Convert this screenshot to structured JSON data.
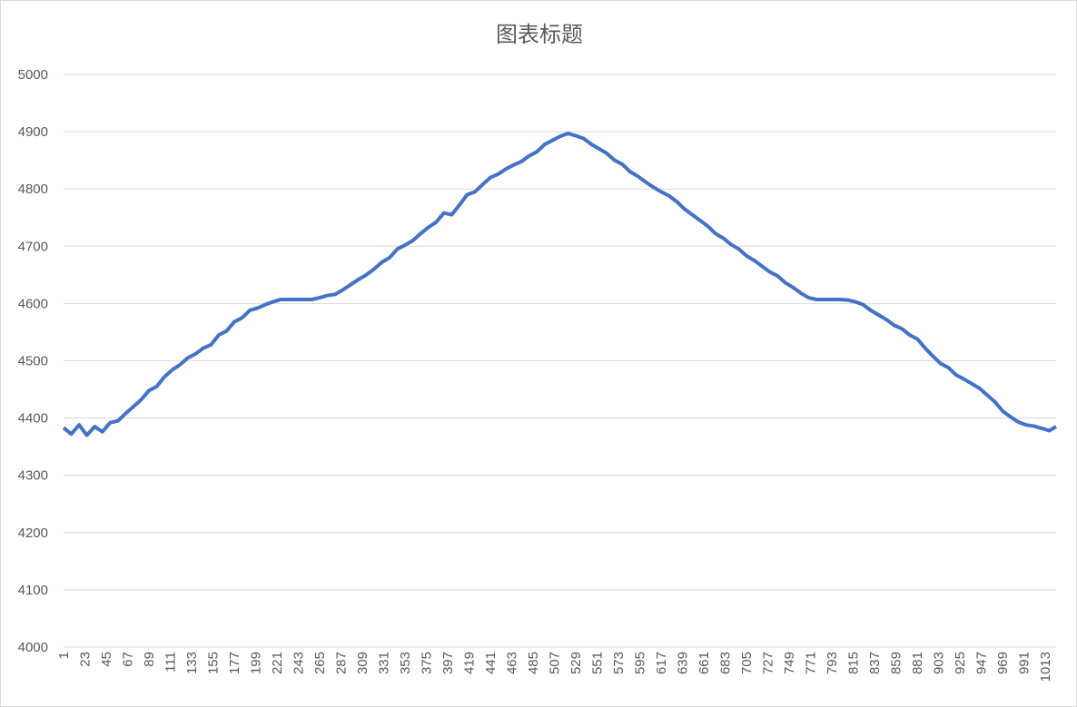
{
  "chart_data": {
    "type": "line",
    "title": "图表标题",
    "x": [
      1,
      9,
      17,
      25,
      33,
      41,
      49,
      57,
      65,
      73,
      81,
      89,
      97,
      105,
      113,
      121,
      129,
      137,
      145,
      153,
      161,
      169,
      177,
      185,
      193,
      201,
      209,
      217,
      225,
      233,
      241,
      249,
      257,
      265,
      273,
      281,
      289,
      297,
      305,
      313,
      321,
      329,
      337,
      345,
      353,
      361,
      369,
      377,
      385,
      393,
      401,
      409,
      417,
      425,
      433,
      441,
      449,
      457,
      465,
      473,
      481,
      489,
      497,
      505,
      513,
      521,
      529,
      537,
      545,
      553,
      561,
      569,
      577,
      585,
      593,
      601,
      609,
      617,
      625,
      633,
      641,
      649,
      657,
      665,
      673,
      681,
      689,
      697,
      705,
      713,
      721,
      729,
      737,
      745,
      753,
      761,
      769,
      777,
      785,
      793,
      801,
      809,
      817,
      825,
      833,
      841,
      849,
      857,
      865,
      873,
      881,
      889,
      897,
      905,
      913,
      921,
      929,
      937,
      945,
      953,
      961,
      969,
      977,
      985,
      993,
      1001,
      1009,
      1017,
      1024
    ],
    "series": [
      {
        "color": "#4472c4",
        "values": [
          4383,
          4372,
          4388,
          4370,
          4385,
          4376,
          4392,
          4395,
          4408,
          4420,
          4432,
          4448,
          4455,
          4472,
          4484,
          4493,
          4505,
          4512,
          4522,
          4528,
          4545,
          4552,
          4568,
          4575,
          4588,
          4592,
          4598,
          4603,
          4607,
          4607,
          4607,
          4607,
          4607,
          4610,
          4614,
          4616,
          4624,
          4633,
          4642,
          4650,
          4660,
          4672,
          4680,
          4695,
          4702,
          4710,
          4722,
          4733,
          4742,
          4758,
          4755,
          4772,
          4790,
          4795,
          4808,
          4820,
          4826,
          4835,
          4842,
          4848,
          4858,
          4865,
          4878,
          4885,
          4892,
          4897,
          4893,
          4888,
          4878,
          4870,
          4862,
          4850,
          4843,
          4830,
          4822,
          4812,
          4803,
          4795,
          4788,
          4778,
          4765,
          4755,
          4745,
          4735,
          4722,
          4714,
          4703,
          4695,
          4683,
          4675,
          4665,
          4655,
          4648,
          4636,
          4628,
          4618,
          4610,
          4607,
          4607,
          4607,
          4607,
          4606,
          4603,
          4598,
          4588,
          4580,
          4572,
          4562,
          4556,
          4545,
          4538,
          4522,
          4508,
          4495,
          4488,
          4475,
          4468,
          4460,
          4452,
          4440,
          4428,
          4412,
          4402,
          4393,
          4388,
          4386,
          4382,
          4378,
          4385
        ]
      }
    ],
    "xlim": [
      1,
      1024
    ],
    "xticks": [
      1,
      23,
      45,
      67,
      89,
      111,
      133,
      155,
      177,
      199,
      221,
      243,
      265,
      287,
      309,
      331,
      353,
      375,
      397,
      419,
      441,
      463,
      485,
      507,
      529,
      551,
      573,
      595,
      617,
      639,
      661,
      683,
      705,
      727,
      749,
      771,
      793,
      815,
      837,
      859,
      881,
      903,
      925,
      947,
      969,
      991,
      1013
    ],
    "ylim": [
      4000,
      5000
    ],
    "yticks": [
      4000,
      4100,
      4200,
      4300,
      4400,
      4500,
      4600,
      4700,
      4800,
      4900,
      5000
    ],
    "grid": true
  }
}
